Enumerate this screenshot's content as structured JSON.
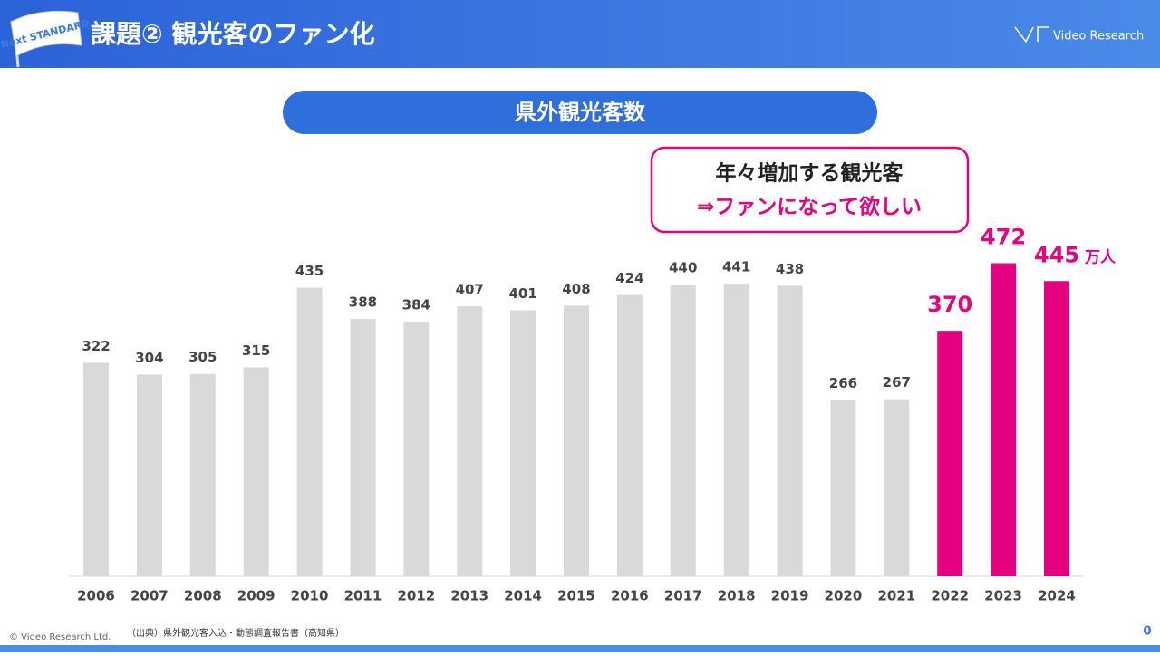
{
  "header": {
    "title": "課題② 観光客のファン化",
    "logo_text": "Video Research",
    "flag_text": "Next STANDARD"
  },
  "chart_data": {
    "type": "bar",
    "title": "県外観光客数",
    "categories": [
      "2006",
      "2007",
      "2008",
      "2009",
      "2010",
      "2011",
      "2012",
      "2013",
      "2014",
      "2015",
      "2016",
      "2017",
      "2018",
      "2019",
      "2020",
      "2021",
      "2022",
      "2023",
      "2024"
    ],
    "values": [
      322,
      304,
      305,
      315,
      435,
      388,
      384,
      407,
      401,
      408,
      424,
      440,
      441,
      438,
      266,
      267,
      370,
      472,
      445
    ],
    "colors": [
      "#d9d9d9",
      "#d9d9d9",
      "#d9d9d9",
      "#d9d9d9",
      "#d9d9d9",
      "#d9d9d9",
      "#d9d9d9",
      "#d9d9d9",
      "#d9d9d9",
      "#d9d9d9",
      "#d9d9d9",
      "#d9d9d9",
      "#d9d9d9",
      "#d9d9d9",
      "#d9d9d9",
      "#d9d9d9",
      "#e4007f",
      "#e4007f",
      "#e4007f"
    ],
    "highlight_color": "#e4007f",
    "unit": "万人",
    "ylim": [
      0,
      500
    ],
    "callout": {
      "line1": "年々増加する観光客",
      "line2": "⇒ファンになって欲しい"
    }
  },
  "footer": {
    "copyright": "© Video Research Ltd.",
    "source": "（出典）県外観光客入込・動態調査報告書（高知県）",
    "page": "0"
  }
}
